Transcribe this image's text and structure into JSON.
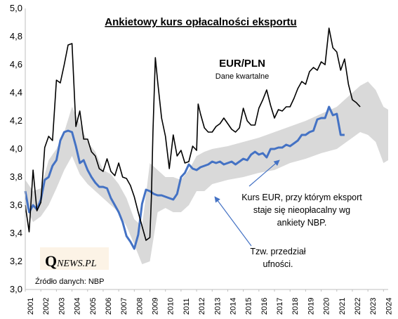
{
  "chart_data": {
    "type": "line",
    "title": "Ankietowy kurs opłacalności eksportu",
    "subtitle": "Dane kwartalne",
    "currency_label": "EUR/PLN",
    "ylim": [
      3.0,
      5.0
    ],
    "yticks": [
      "3,0",
      "3,2",
      "3,4",
      "3,6",
      "3,8",
      "4,0",
      "4,2",
      "4,4",
      "4,6",
      "4,8",
      "5,0"
    ],
    "xlim": [
      2001.0,
      2024.3
    ],
    "xticks": [
      "2001",
      "2002",
      "2003",
      "2004",
      "2005",
      "2006",
      "2007",
      "2008",
      "2009",
      "2010",
      "2011",
      "2012",
      "2013",
      "2014",
      "2015",
      "2016",
      "2017",
      "2018",
      "2019",
      "2020",
      "2021",
      "2022",
      "2023",
      "2024"
    ],
    "grid": false,
    "annotations": {
      "kurs_eur": [
        "Kurs EUR, przy którym eksport",
        "staje się nieopłacalny wg",
        "ankiety NBP."
      ],
      "przedzial": [
        "Tzw. przedział",
        "ufności."
      ]
    },
    "source": "Źródło danych: NBP",
    "logo": {
      "q": "Q",
      "rest": "NEWS.PL"
    },
    "colors": {
      "eurpln": "#000000",
      "threshold": "#4472C4",
      "band": "#d9d9d9"
    },
    "series": [
      {
        "key": "eurpln",
        "name": "EUR/PLN",
        "start": 2001.0,
        "step": 0.25,
        "values": [
          3.6,
          3.41,
          3.85,
          3.56,
          3.62,
          4.01,
          4.09,
          4.06,
          4.49,
          4.47,
          4.6,
          4.74,
          4.75,
          4.16,
          4.27,
          4.07,
          4.07,
          3.98,
          3.95,
          3.86,
          3.84,
          3.93,
          3.84,
          3.81,
          3.9,
          3.8,
          3.79,
          3.74,
          3.66,
          3.55,
          3.45,
          3.35,
          3.37,
          3.66,
          4.12,
          4.65,
          4.48,
          4.22,
          4.09,
          3.86,
          4.1,
          3.95,
          3.99,
          3.9,
          3.91,
          4.02,
          3.99,
          4.32,
          4.25,
          4.15,
          4.12,
          4.12,
          4.16,
          4.18,
          4.22,
          4.18,
          4.14,
          4.12,
          4.15,
          4.29,
          4.2,
          4.17,
          4.17,
          4.29,
          4.35,
          4.42,
          4.31,
          4.22,
          4.28,
          4.27,
          4.3,
          4.3,
          4.36,
          4.43,
          4.48,
          4.46,
          4.55,
          4.58,
          4.56,
          4.62,
          4.6,
          4.86,
          4.72,
          4.69,
          4.56,
          4.64,
          4.46,
          4.35,
          4.33,
          4.3
        ],
        "x_override": [
          2001.0,
          2001.25,
          2001.5,
          2001.75,
          2002.0,
          2002.25,
          2002.5,
          2002.75,
          2003.0,
          2003.25,
          2003.5,
          2003.75,
          2004.0,
          2004.25,
          2004.5,
          2004.75,
          2005.0,
          2005.25,
          2005.5,
          2005.75,
          2006.0,
          2006.25,
          2006.5,
          2006.75,
          2007.0,
          2007.25,
          2007.5,
          2007.75,
          2008.0,
          2008.25,
          2008.5,
          2008.75,
          2009.0,
          2009.1,
          2009.2,
          2009.35,
          2009.5,
          2009.75,
          2010.0,
          2010.25,
          2010.5,
          2010.75,
          2011.0,
          2011.25,
          2011.5,
          2011.75,
          2012.0,
          2012.1,
          2012.25,
          2012.5,
          2012.75,
          2013.0,
          2013.25,
          2013.5,
          2013.75,
          2014.0,
          2014.25,
          2014.5,
          2014.75,
          2015.0,
          2015.25,
          2015.5,
          2015.75,
          2016.0,
          2016.25,
          2016.5,
          2016.75,
          2017.0,
          2017.25,
          2017.5,
          2017.75,
          2018.0,
          2018.25,
          2018.5,
          2018.75,
          2019.0,
          2019.25,
          2019.5,
          2019.75,
          2020.0,
          2020.25,
          2020.5,
          2020.75,
          2021.0,
          2021.25,
          2021.5,
          2021.75,
          2022.0,
          2022.25,
          2022.5
        ]
      },
      {
        "key": "threshold",
        "name": "Kurs EUR, przy którym eksport staje się nieopłacalny wg ankiety NBP.",
        "start": 2001.0,
        "step": 0.25,
        "values": [
          3.7,
          3.55,
          3.6,
          3.57,
          3.64,
          3.78,
          3.8,
          3.88,
          3.92,
          4.06,
          4.12,
          4.13,
          4.12,
          4.02,
          3.9,
          3.92,
          3.85,
          3.8,
          3.76,
          3.73,
          3.73,
          3.72,
          3.65,
          3.6,
          3.55,
          3.48,
          3.38,
          3.34,
          3.29,
          3.39,
          3.61,
          3.71,
          3.7,
          3.68,
          3.67,
          3.67,
          3.66,
          3.65,
          3.64,
          3.68,
          3.8,
          3.83,
          3.89,
          3.86,
          3.85,
          3.87,
          3.88,
          3.89,
          3.91,
          3.9,
          3.91,
          3.89,
          3.9,
          3.91,
          3.89,
          3.91,
          3.93,
          3.92,
          3.96,
          3.98,
          3.96,
          3.97,
          3.94,
          4.0,
          4.0,
          4.01,
          4.01,
          4.03,
          4.02,
          4.04,
          4.06,
          4.1,
          4.1,
          4.12,
          4.13,
          4.21,
          4.22,
          4.22,
          4.3,
          4.24,
          4.25,
          4.1,
          4.1
        ],
        "x_override": [
          2001.0,
          2001.25,
          2001.5,
          2001.75,
          2002.0,
          2002.25,
          2002.5,
          2002.75,
          2003.0,
          2003.25,
          2003.5,
          2003.75,
          2004.0,
          2004.25,
          2004.5,
          2004.75,
          2005.0,
          2005.25,
          2005.5,
          2005.75,
          2006.0,
          2006.25,
          2006.5,
          2006.75,
          2007.0,
          2007.25,
          2007.5,
          2007.75,
          2008.0,
          2008.25,
          2008.5,
          2008.75,
          2009.0,
          2009.25,
          2009.5,
          2009.75,
          2010.0,
          2010.25,
          2010.5,
          2010.75,
          2011.0,
          2011.25,
          2011.5,
          2011.75,
          2012.0,
          2012.25,
          2012.5,
          2012.75,
          2013.0,
          2013.25,
          2013.5,
          2013.75,
          2014.0,
          2014.25,
          2014.5,
          2014.75,
          2015.0,
          2015.25,
          2015.5,
          2015.75,
          2016.0,
          2016.25,
          2016.5,
          2016.75,
          2017.0,
          2017.25,
          2017.5,
          2017.75,
          2018.0,
          2018.25,
          2018.5,
          2018.75,
          2019.0,
          2019.25,
          2019.5,
          2019.75,
          2020.0,
          2020.25,
          2020.5,
          2020.75,
          2021.0,
          2021.25,
          2021.5
        ]
      },
      {
        "key": "band",
        "name": "Tzw. przedział ufności.",
        "x": [
          2001.0,
          2001.5,
          2002.0,
          2002.5,
          2003.0,
          2003.5,
          2004.0,
          2004.5,
          2005.0,
          2005.5,
          2006.0,
          2006.5,
          2007.0,
          2007.5,
          2008.0,
          2008.5,
          2009.0,
          2009.5,
          2010.0,
          2010.5,
          2011.0,
          2011.5,
          2012.0,
          2012.5,
          2013.0,
          2014.0,
          2015.0,
          2016.0,
          2017.0,
          2018.0,
          2019.0,
          2020.0,
          2021.0,
          2022.0,
          2022.5,
          2023.0,
          2023.5,
          2024.0,
          2024.3
        ],
        "lower": [
          3.6,
          3.48,
          3.52,
          3.6,
          3.72,
          3.85,
          3.95,
          3.82,
          3.75,
          3.7,
          3.65,
          3.6,
          3.55,
          3.45,
          3.32,
          3.18,
          3.2,
          3.55,
          3.58,
          3.55,
          3.55,
          3.6,
          3.7,
          3.7,
          3.75,
          3.78,
          3.8,
          3.83,
          3.85,
          3.9,
          3.93,
          3.97,
          4.0,
          4.08,
          4.12,
          4.1,
          4.05,
          3.9,
          3.92
        ],
        "upper": [
          3.78,
          3.7,
          3.72,
          3.92,
          4.0,
          4.12,
          4.3,
          4.18,
          4.05,
          3.98,
          3.85,
          3.82,
          3.75,
          3.65,
          3.5,
          3.45,
          3.9,
          3.85,
          3.8,
          3.8,
          3.78,
          3.85,
          3.95,
          3.98,
          4.0,
          4.02,
          4.05,
          4.08,
          4.12,
          4.16,
          4.2,
          4.25,
          4.3,
          4.4,
          4.45,
          4.48,
          4.42,
          4.3,
          4.28
        ]
      }
    ]
  }
}
